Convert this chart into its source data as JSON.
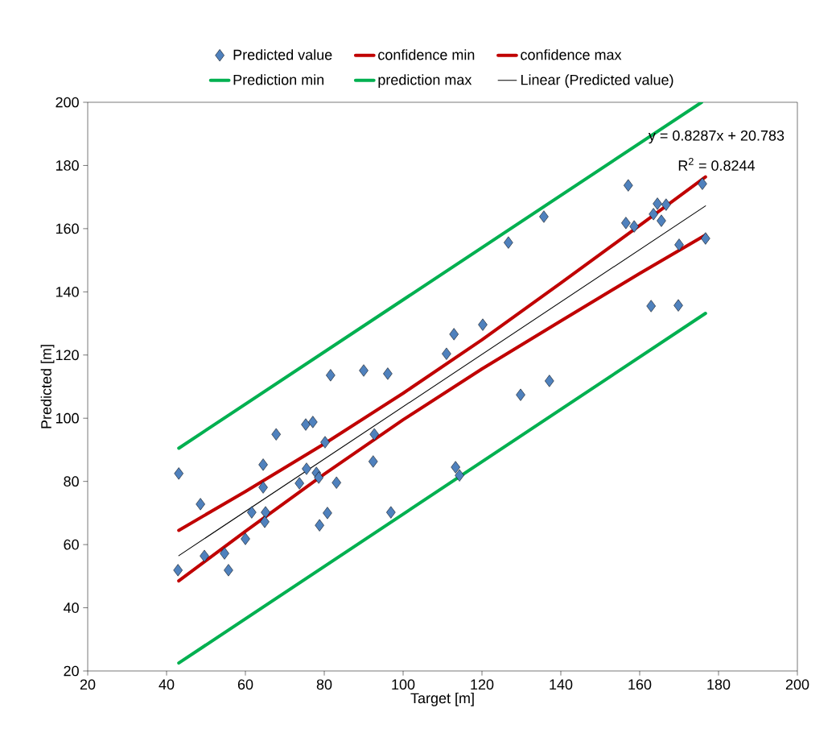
{
  "chart_data": {
    "type": "scatter",
    "xlabel": "Target [m]",
    "ylabel": "Predicted [m]",
    "xlim": [
      20,
      200
    ],
    "xticks": [
      20,
      40,
      60,
      80,
      100,
      120,
      140,
      160,
      180,
      200
    ],
    "ylim": [
      20,
      200
    ],
    "yticks": [
      20,
      40,
      60,
      80,
      100,
      120,
      140,
      160,
      180,
      200
    ],
    "legend": "top",
    "annotations": [
      "y = 0.8287x + 20.783",
      "R$^{2}$ = 0.8244"
    ],
    "series": [
      {
        "name": "Predicted value",
        "marker": "diamond",
        "color": "#4f81bd",
        "x": [
          43.1,
          42.9,
          48.6,
          49.6,
          54.7,
          55.7,
          60.0,
          61.6,
          64.5,
          64.5,
          65.1,
          64.9,
          67.8,
          73.7,
          75.3,
          75.5,
          77.1,
          78.0,
          78.6,
          78.8,
          80.2,
          80.8,
          81.6,
          83.1,
          90.0,
          92.7,
          92.4,
          96.1,
          96.9,
          111.0,
          112.9,
          113.3,
          114.3,
          120.2,
          126.7,
          129.8,
          135.7,
          137.1,
          156.5,
          157.1,
          158.6,
          163.5,
          164.5,
          165.5,
          166.7,
          162.9,
          169.8,
          170.0,
          175.9,
          176.7
        ],
        "values": [
          82.5,
          51.9,
          72.8,
          56.4,
          57.2,
          51.9,
          61.8,
          70.2,
          85.3,
          78.1,
          70.2,
          67.2,
          94.9,
          79.4,
          98.0,
          84.0,
          98.8,
          82.7,
          81.2,
          66.1,
          92.4,
          70.0,
          113.6,
          79.6,
          115.1,
          94.9,
          86.3,
          114.1,
          70.2,
          120.4,
          126.6,
          84.5,
          81.9,
          129.6,
          155.6,
          107.4,
          163.8,
          111.8,
          161.8,
          173.7,
          160.7,
          164.6,
          167.9,
          162.5,
          167.6,
          135.5,
          135.7,
          154.9,
          174.2,
          156.9
        ]
      },
      {
        "name": "confidence min",
        "type": "line",
        "color": "#c00000",
        "x": [
          43.1,
          60,
          80,
          100,
          120,
          140,
          160,
          176.7
        ],
        "values": [
          64.5,
          76.8,
          91.9,
          107.9,
          124.8,
          142.8,
          161.0,
          176.4
        ]
      },
      {
        "name": "confidence max",
        "type": "line",
        "color": "#c00000",
        "x": [
          43.1,
          60,
          80,
          100,
          120,
          140,
          160,
          176.7
        ],
        "values": [
          48.5,
          64.2,
          82.3,
          99.5,
          115.6,
          130.8,
          145.8,
          158.0
        ]
      },
      {
        "name": "Prediction min",
        "type": "line",
        "color": "#00b050",
        "x": [
          43.1,
          175.7
        ],
        "values": [
          90.5,
          200
        ]
      },
      {
        "name": "prediction max",
        "type": "line",
        "color": "#00b050",
        "x": [
          43.1,
          176.7
        ],
        "values": [
          22.5,
          133.2
        ]
      },
      {
        "name": "Linear (Predicted value)",
        "type": "line",
        "color": "#000000",
        "x": [
          43.1,
          176.7
        ],
        "values": [
          56.5,
          167.2
        ]
      }
    ]
  }
}
